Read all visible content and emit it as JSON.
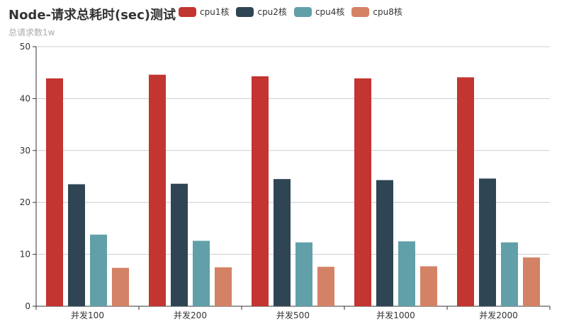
{
  "chart_data": {
    "type": "bar",
    "title": "Node-请求总耗时(sec)测试",
    "subtitle": "总请求数1w",
    "categories": [
      "并发100",
      "并发200",
      "并发500",
      "并发1000",
      "并发2000"
    ],
    "series": [
      {
        "name": "cpu1核",
        "color": "#c23531",
        "values": [
          43.9,
          44.6,
          44.3,
          43.9,
          44.1
        ]
      },
      {
        "name": "cpu2核",
        "color": "#2f4554",
        "values": [
          23.5,
          23.6,
          24.5,
          24.3,
          24.6
        ]
      },
      {
        "name": "cpu4核",
        "color": "#61a0a8",
        "values": [
          13.8,
          12.6,
          12.3,
          12.5,
          12.3
        ]
      },
      {
        "name": "cpu8核",
        "color": "#d48265",
        "values": [
          7.4,
          7.5,
          7.6,
          7.7,
          9.4
        ]
      }
    ],
    "ylim": [
      0,
      50
    ],
    "yticks": [
      0,
      10,
      20,
      30,
      40,
      50
    ],
    "grid": true,
    "legend_position": "top"
  }
}
